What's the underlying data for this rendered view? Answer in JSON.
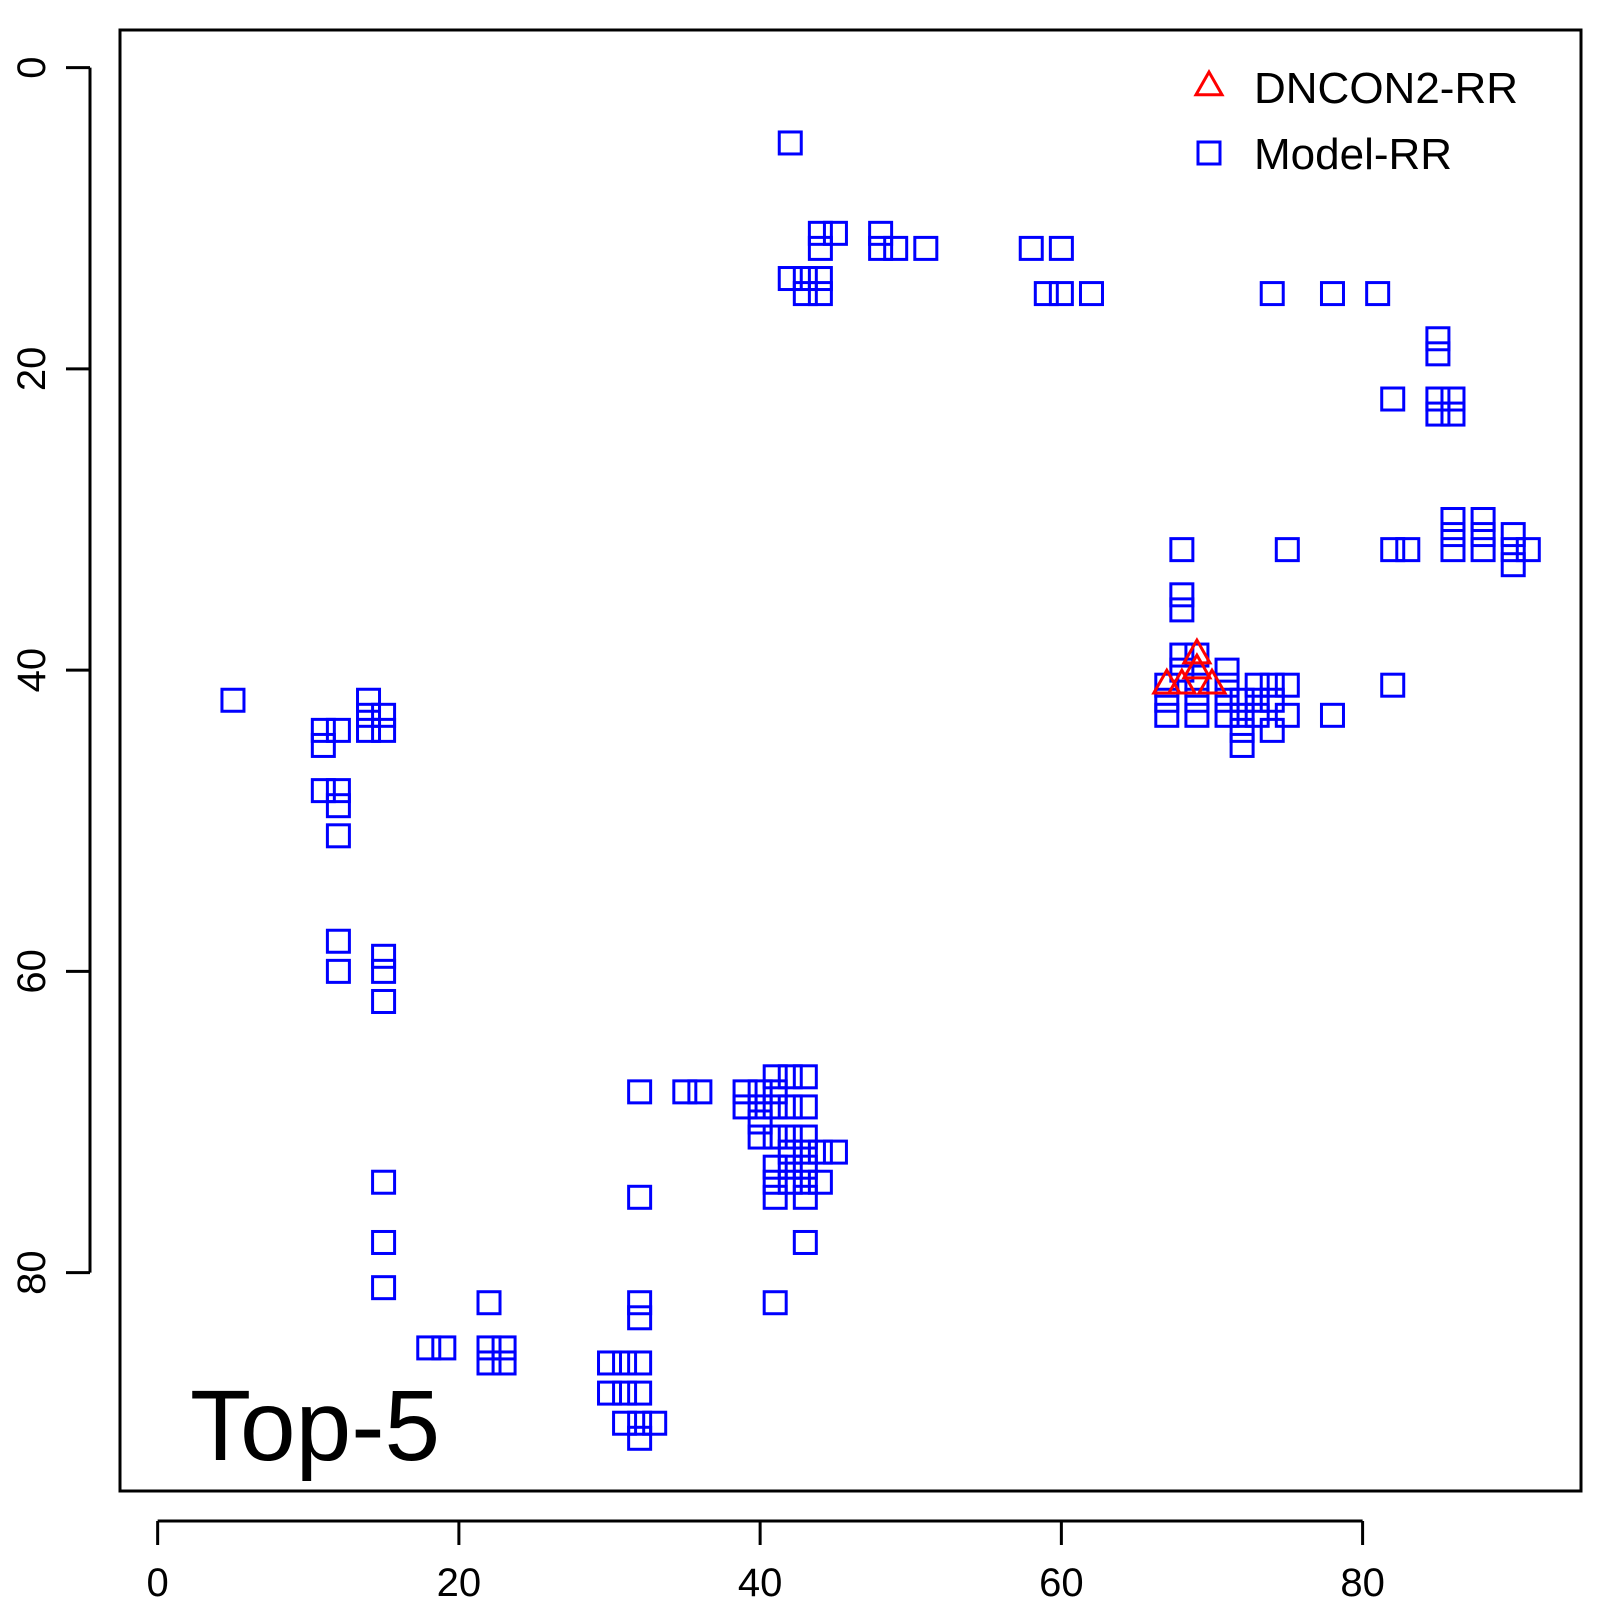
{
  "chart_data": {
    "type": "scatter",
    "title": "",
    "xlabel": "",
    "ylabel": "",
    "xlim": [
      -2.5,
      94.5
    ],
    "ylim": [
      -2.5,
      94.5
    ],
    "y_reversed": true,
    "x_ticks": [
      0,
      20,
      40,
      60,
      80
    ],
    "y_ticks": [
      0,
      20,
      40,
      60,
      80
    ],
    "grid": false,
    "legend_position": "top-right",
    "annotation": "Top-5",
    "colors": {
      "DNCON2-RR": "#ff0000",
      "Model-RR": "#0000ff"
    },
    "series": [
      {
        "name": "DNCON2-RR",
        "marker": "triangle",
        "points": [
          [
            67,
            41
          ],
          [
            68,
            41
          ],
          [
            69,
            39
          ],
          [
            69,
            40
          ],
          [
            70,
            41
          ]
        ]
      },
      {
        "name": "Model-RR",
        "marker": "square",
        "points": [
          [
            42,
            5
          ],
          [
            44,
            11
          ],
          [
            45,
            11
          ],
          [
            44,
            12
          ],
          [
            48,
            11
          ],
          [
            48,
            12
          ],
          [
            49,
            12
          ],
          [
            51,
            12
          ],
          [
            58,
            12
          ],
          [
            60,
            12
          ],
          [
            42,
            14
          ],
          [
            43,
            14
          ],
          [
            44,
            14
          ],
          [
            43,
            15
          ],
          [
            44,
            15
          ],
          [
            59,
            15
          ],
          [
            60,
            15
          ],
          [
            62,
            15
          ],
          [
            74,
            15
          ],
          [
            78,
            15
          ],
          [
            81,
            15
          ],
          [
            85,
            18
          ],
          [
            85,
            19
          ],
          [
            82,
            22
          ],
          [
            85,
            22
          ],
          [
            86,
            22
          ],
          [
            85,
            23
          ],
          [
            86,
            23
          ],
          [
            86,
            30
          ],
          [
            88,
            30
          ],
          [
            86,
            31
          ],
          [
            88,
            31
          ],
          [
            90,
            31
          ],
          [
            86,
            32
          ],
          [
            88,
            32
          ],
          [
            68,
            32
          ],
          [
            75,
            32
          ],
          [
            82,
            32
          ],
          [
            83,
            32
          ],
          [
            90,
            32
          ],
          [
            91,
            32
          ],
          [
            90,
            33
          ],
          [
            68,
            35
          ],
          [
            68,
            36
          ],
          [
            68,
            39
          ],
          [
            69,
            39
          ],
          [
            68,
            40
          ],
          [
            71,
            40
          ],
          [
            67,
            41
          ],
          [
            69,
            41
          ],
          [
            71,
            41
          ],
          [
            73,
            41
          ],
          [
            74,
            41
          ],
          [
            75,
            41
          ],
          [
            82,
            41
          ],
          [
            67,
            42
          ],
          [
            69,
            42
          ],
          [
            71,
            42
          ],
          [
            72,
            42
          ],
          [
            73,
            42
          ],
          [
            74,
            42
          ],
          [
            67,
            43
          ],
          [
            69,
            43
          ],
          [
            71,
            43
          ],
          [
            72,
            43
          ],
          [
            73,
            43
          ],
          [
            75,
            43
          ],
          [
            78,
            43
          ],
          [
            72,
            44
          ],
          [
            74,
            44
          ],
          [
            72,
            45
          ],
          [
            5,
            42
          ],
          [
            14,
            42
          ],
          [
            14,
            43
          ],
          [
            15,
            43
          ],
          [
            11,
            44
          ],
          [
            12,
            44
          ],
          [
            14,
            44
          ],
          [
            15,
            44
          ],
          [
            11,
            45
          ],
          [
            11,
            48
          ],
          [
            12,
            48
          ],
          [
            12,
            49
          ],
          [
            12,
            51
          ],
          [
            12,
            58
          ],
          [
            12,
            60
          ],
          [
            15,
            59
          ],
          [
            15,
            60
          ],
          [
            15,
            62
          ],
          [
            32,
            68
          ],
          [
            35,
            68
          ],
          [
            36,
            68
          ],
          [
            39,
            68
          ],
          [
            40,
            68
          ],
          [
            41,
            67
          ],
          [
            42,
            67
          ],
          [
            43,
            67
          ],
          [
            41,
            68
          ],
          [
            39,
            69
          ],
          [
            40,
            69
          ],
          [
            41,
            69
          ],
          [
            42,
            69
          ],
          [
            43,
            69
          ],
          [
            40,
            70
          ],
          [
            40,
            71
          ],
          [
            41,
            71
          ],
          [
            42,
            71
          ],
          [
            43,
            71
          ],
          [
            42,
            72
          ],
          [
            43,
            72
          ],
          [
            44,
            72
          ],
          [
            45,
            72
          ],
          [
            41,
            73
          ],
          [
            42,
            73
          ],
          [
            43,
            73
          ],
          [
            41,
            74
          ],
          [
            42,
            74
          ],
          [
            43,
            74
          ],
          [
            44,
            74
          ],
          [
            41,
            75
          ],
          [
            43,
            75
          ],
          [
            32,
            75
          ],
          [
            15,
            74
          ],
          [
            15,
            78
          ],
          [
            43,
            78
          ],
          [
            15,
            81
          ],
          [
            41,
            82
          ],
          [
            22,
            82
          ],
          [
            32,
            82
          ],
          [
            32,
            83
          ],
          [
            18,
            85
          ],
          [
            19,
            85
          ],
          [
            22,
            85
          ],
          [
            23,
            85
          ],
          [
            22,
            86
          ],
          [
            23,
            86
          ],
          [
            30,
            86
          ],
          [
            31,
            86
          ],
          [
            32,
            86
          ],
          [
            30,
            88
          ],
          [
            31,
            88
          ],
          [
            32,
            88
          ],
          [
            31,
            90
          ],
          [
            32,
            90
          ],
          [
            33,
            90
          ],
          [
            32,
            91
          ]
        ]
      }
    ]
  }
}
